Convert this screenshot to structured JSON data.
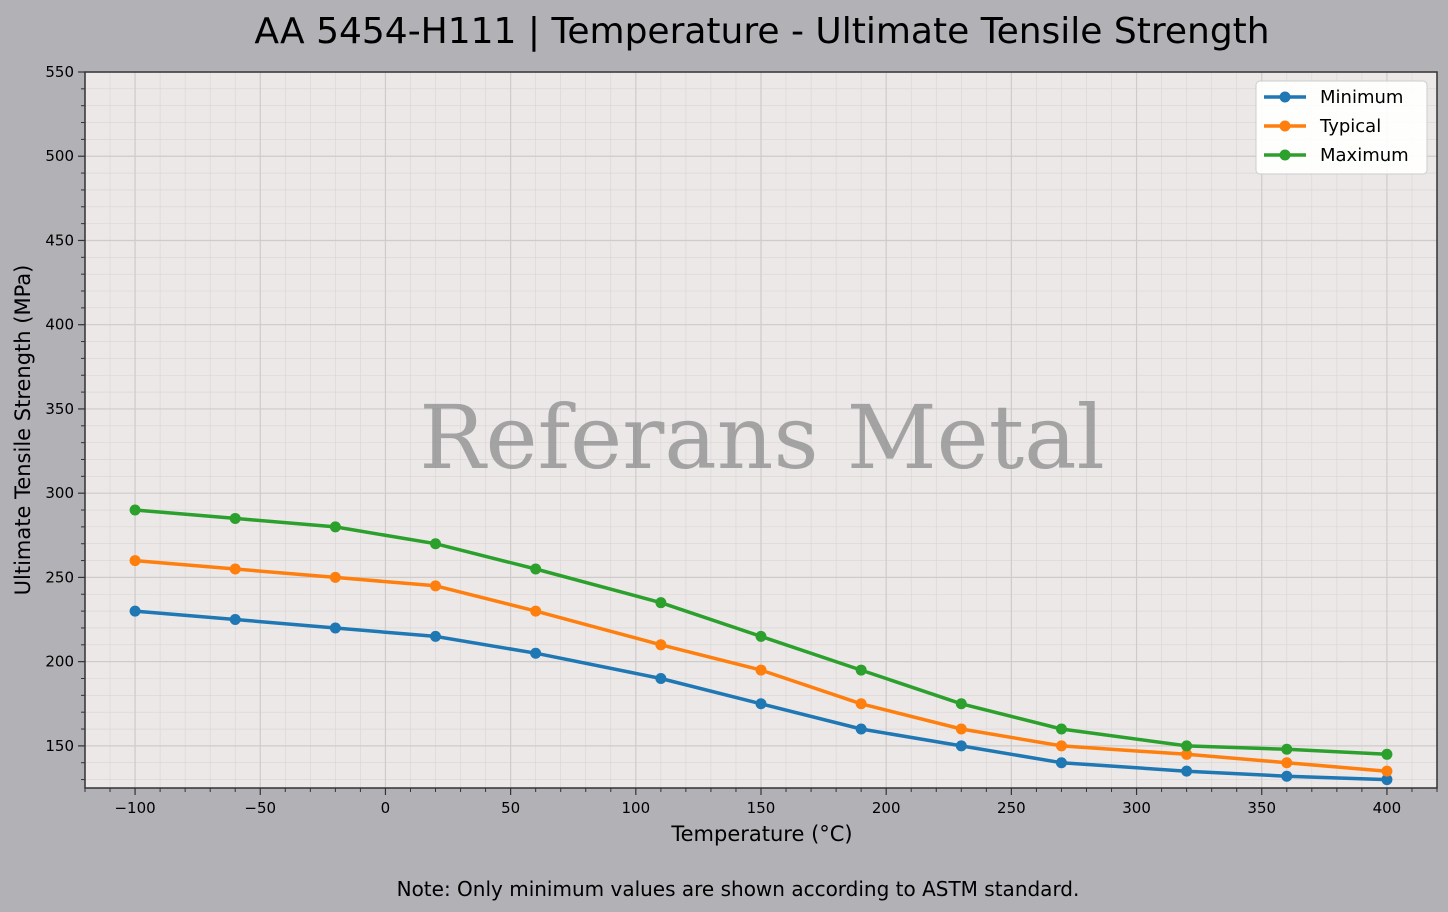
{
  "chart_data": {
    "type": "line",
    "title": "AA 5454-H111 | Temperature - Ultimate Tensile Strength",
    "xlabel": "Temperature (°C)",
    "ylabel": "Ultimate Tensile Strength (MPa)",
    "xlim": [
      -120,
      420
    ],
    "ylim": [
      125,
      550
    ],
    "xticks": [
      -100,
      -50,
      0,
      50,
      100,
      150,
      200,
      250,
      300,
      350,
      400
    ],
    "xtick_labels": [
      "−100",
      "−50",
      "0",
      "50",
      "100",
      "150",
      "200",
      "250",
      "300",
      "350",
      "400"
    ],
    "yticks": [
      150,
      200,
      250,
      300,
      350,
      400,
      450,
      500,
      550
    ],
    "ytick_labels": [
      "150",
      "200",
      "250",
      "300",
      "350",
      "400",
      "450",
      "500",
      "550"
    ],
    "grid": true,
    "legend_position": "top-right",
    "x": [
      -100,
      -60,
      -20,
      20,
      60,
      110,
      150,
      190,
      230,
      270,
      320,
      360,
      400
    ],
    "series": [
      {
        "name": "Minimum",
        "color": "#1f77b4",
        "values": [
          230,
          225,
          220,
          215,
          205,
          190,
          175,
          160,
          150,
          140,
          135,
          132,
          130
        ]
      },
      {
        "name": "Typical",
        "color": "#ff7f0e",
        "values": [
          260,
          255,
          250,
          245,
          230,
          210,
          195,
          175,
          160,
          150,
          145,
          140,
          135
        ]
      },
      {
        "name": "Maximum",
        "color": "#2ca02c",
        "values": [
          290,
          285,
          280,
          270,
          255,
          235,
          215,
          195,
          175,
          160,
          150,
          148,
          145
        ]
      }
    ],
    "watermark": "Referans Metal",
    "note": "Note: Only minimum values are shown according to ASTM standard.",
    "colors": {
      "figure_bg": "#b1b1b6",
      "plot_bg": "#ebe8e7"
    }
  }
}
